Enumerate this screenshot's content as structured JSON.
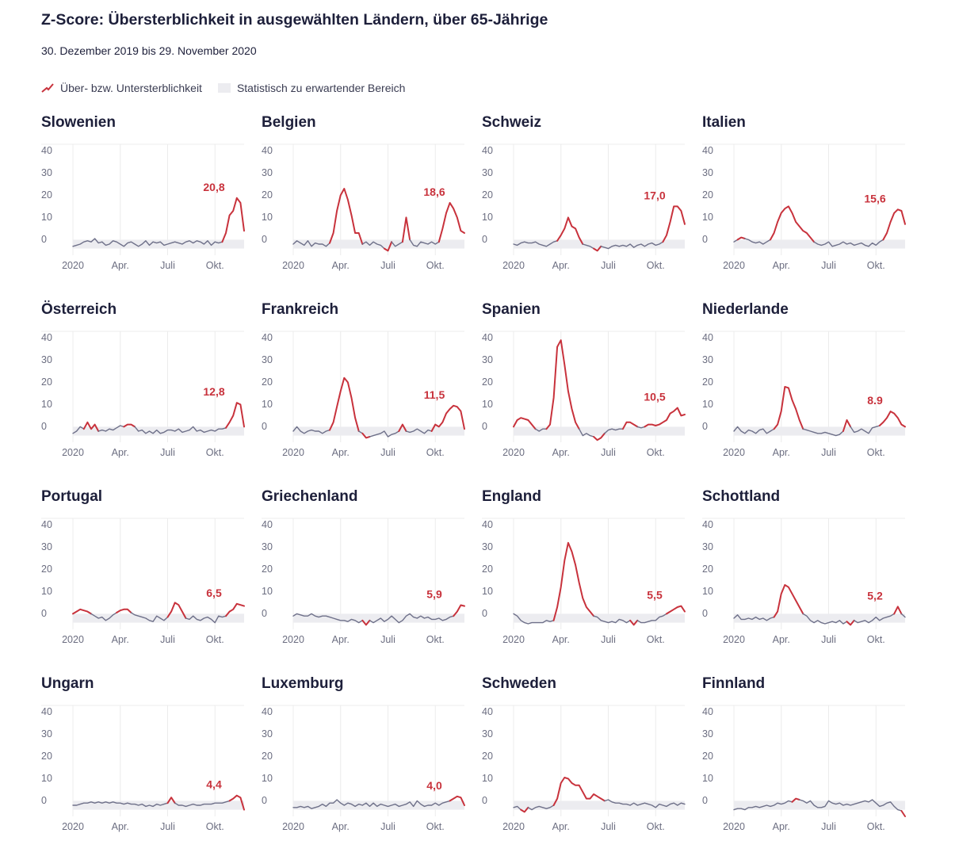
{
  "title": "Z-Score: Übersterblichkeit in ausgewählten Ländern, über 65-Jährige",
  "subtitle": "30. Dezember 2019 bis 29. November 2020",
  "legend": {
    "line_label": "Über- bzw. Untersterblichkeit",
    "band_label": "Statistisch zu erwartender Bereich"
  },
  "colors": {
    "excess": "#c8323c",
    "normal": "#6e7089",
    "band": "#ececf0",
    "grid": "#ececec"
  },
  "chart_data": {
    "type": "line",
    "x": [
      1,
      2,
      3,
      4,
      5,
      6,
      7,
      8,
      9,
      10,
      11,
      12,
      13,
      14,
      15,
      16,
      17,
      18,
      19,
      20,
      21,
      22,
      23,
      24,
      25,
      26,
      27,
      28,
      29,
      30,
      31,
      32,
      33,
      34,
      35,
      36,
      37,
      38,
      39,
      40,
      41,
      42,
      43,
      44,
      45,
      46,
      47,
      48
    ],
    "x_label_weeks": [
      1,
      14,
      27,
      40
    ],
    "x_tick_labels": [
      "2020",
      "Apr.",
      "Juli",
      "Okt."
    ],
    "y_ticks": [
      0,
      10,
      20,
      30,
      40
    ],
    "y_tick_labels": [
      "0",
      "10",
      "20",
      "30",
      "40"
    ],
    "ylim": [
      -5,
      45
    ],
    "expected_band": [
      -2,
      2
    ],
    "panels": [
      {
        "name": "Slowenien",
        "value_label": "20,8",
        "values": [
          -1,
          -0.5,
          0,
          1,
          1.5,
          1,
          2.5,
          0.5,
          1,
          -0.5,
          0,
          1.5,
          1,
          0,
          -1,
          0.5,
          1,
          0,
          -1,
          0,
          1.5,
          -0.5,
          1,
          0.5,
          1,
          -0.5,
          0,
          0.5,
          1,
          0.5,
          0,
          1,
          1.5,
          0.5,
          1.5,
          1,
          0,
          1.5,
          -0.5,
          1,
          0.5,
          1,
          5,
          13,
          15,
          20.8,
          18.6,
          6
        ]
      },
      {
        "name": "Belgien",
        "value_label": "18,6",
        "values": [
          0,
          1.5,
          0.5,
          -0.5,
          1.5,
          -1,
          0.5,
          0,
          0,
          -1,
          0.5,
          5,
          15,
          22,
          25,
          20,
          13,
          5,
          5,
          0,
          1,
          -0.5,
          1,
          0,
          -0.5,
          -2,
          -3,
          1,
          -1,
          0,
          1,
          12,
          2,
          -0.5,
          -1,
          1,
          0.5,
          0,
          1,
          0,
          1,
          7,
          14,
          18.6,
          16,
          12,
          6,
          5
        ]
      },
      {
        "name": "Schweiz",
        "value_label": "17,0",
        "values": [
          0,
          -0.5,
          0.5,
          1,
          0.5,
          0.5,
          1,
          0,
          -0.5,
          -1,
          0,
          1,
          1.5,
          4,
          7,
          12,
          8,
          7,
          3,
          0,
          -0.5,
          -1,
          -2,
          -3,
          -1,
          -1.5,
          -2,
          -1,
          -0.5,
          -1,
          -0.5,
          -1,
          0,
          -1.5,
          -0.5,
          0,
          -1,
          0,
          0.5,
          -0.5,
          0,
          1,
          4,
          10,
          17,
          17,
          15,
          9
        ]
      },
      {
        "name": "Italien",
        "value_label": "15,6",
        "values": [
          1,
          2,
          3,
          2.5,
          2,
          1,
          0.5,
          1,
          0,
          1,
          2,
          5,
          10,
          14,
          16,
          17,
          14,
          10,
          8,
          6,
          5,
          3,
          1,
          0,
          -0.5,
          0,
          1,
          -1,
          -0.5,
          0,
          1,
          0,
          0.5,
          -0.5,
          0,
          0.5,
          -0.5,
          -1,
          0.5,
          -0.5,
          1,
          2,
          5,
          10,
          14,
          15.6,
          15,
          9
        ]
      },
      {
        "name": "Österreich",
        "value_label": "12,8",
        "values": [
          -1,
          0,
          2,
          1,
          4,
          1,
          3,
          0,
          0.5,
          0,
          1,
          0.5,
          1.5,
          2.5,
          2,
          3,
          3,
          2,
          0,
          0.5,
          -1,
          0,
          -1,
          0.5,
          -1,
          -0.5,
          0.5,
          0.5,
          0,
          1,
          -0.5,
          0,
          0.5,
          2,
          0,
          0.5,
          -0.5,
          0,
          0.5,
          0,
          1,
          1,
          1.5,
          4,
          7,
          12.8,
          12,
          2
        ]
      },
      {
        "name": "Frankreich",
        "value_label": "11,5",
        "values": [
          0,
          2,
          0,
          -1,
          0,
          0.5,
          0,
          0,
          -1,
          0,
          0.5,
          4,
          11,
          18,
          24,
          22,
          15,
          6,
          0,
          -1,
          -3,
          -2.5,
          -2,
          -1.5,
          -1,
          0,
          -2.5,
          -1.5,
          -1,
          0,
          3,
          0,
          -0.5,
          0,
          1,
          0,
          -1,
          0.5,
          0,
          3,
          2,
          4,
          8,
          10,
          11.5,
          11,
          9,
          1
        ]
      },
      {
        "name": "Spanien",
        "value_label": "10,5",
        "values": [
          2,
          5,
          6,
          5.5,
          5,
          3,
          1,
          0,
          1,
          1,
          3,
          15,
          38,
          41,
          30,
          18,
          10,
          4,
          1,
          -2,
          -1,
          -2,
          -2.5,
          -4,
          -3,
          -1,
          0.5,
          1,
          0.5,
          1,
          1,
          4,
          4,
          3,
          2,
          1.5,
          2,
          3,
          3,
          2.5,
          3,
          4,
          5,
          8,
          9,
          10.5,
          7,
          7.5
        ]
      },
      {
        "name": "Niederlande",
        "value_label": "8.9",
        "values": [
          0,
          2,
          0,
          -1,
          0.5,
          0,
          -1,
          0.5,
          1,
          -1,
          0,
          1,
          3,
          9,
          20,
          19.5,
          14,
          10,
          5,
          1,
          0.5,
          0,
          -0.5,
          -1,
          -1,
          -0.5,
          -1,
          -1.5,
          -2,
          -1.5,
          0,
          5,
          2,
          -0.5,
          0,
          1,
          0,
          -1,
          1.5,
          2,
          2.5,
          4,
          6,
          8.9,
          8,
          6,
          3,
          2
        ]
      },
      {
        "name": "Portugal",
        "value_label": "6,5",
        "values": [
          2,
          3,
          4,
          3.5,
          3,
          2,
          1,
          0,
          0.5,
          -1,
          0,
          1.5,
          2.5,
          3.5,
          4,
          4,
          2.5,
          1.5,
          1,
          0.5,
          0,
          -1,
          -1.5,
          1,
          0,
          -1,
          0.5,
          3,
          7,
          6,
          3,
          0,
          -0.5,
          1,
          -0.5,
          -1,
          0,
          0.5,
          -0.5,
          -2,
          1,
          0.5,
          1,
          3,
          4,
          6.5,
          6,
          5.5
        ]
      },
      {
        "name": "Griechenland",
        "value_label": "5,9",
        "values": [
          1,
          2,
          1.5,
          1,
          1,
          2,
          1,
          0.5,
          1,
          1,
          0.5,
          0,
          -0.5,
          -1,
          -1,
          -1.5,
          -0.5,
          -1,
          -2,
          -1,
          -3,
          -1,
          -2,
          -1,
          0,
          -1.5,
          -0.5,
          1,
          -0.5,
          -2,
          -1,
          1,
          2,
          0.5,
          0,
          1,
          0,
          0.5,
          -0.5,
          -0.5,
          0,
          -1,
          -0.5,
          0.5,
          1,
          3,
          5.9,
          5.5
        ]
      },
      {
        "name": "England",
        "value_label": "5,5",
        "values": [
          2,
          1,
          -1,
          -2,
          -2.5,
          -2,
          -2,
          -2,
          -2,
          -1,
          -1.5,
          -1,
          5,
          14,
          26,
          34,
          30,
          24,
          16,
          9,
          5,
          3,
          1,
          0.5,
          -1,
          -1.5,
          -2,
          -1.5,
          -2,
          -0.5,
          -1,
          -2,
          -1,
          -3,
          -1,
          -2,
          -2,
          -1.5,
          -1,
          -1,
          0.5,
          1,
          2,
          3,
          4,
          5,
          5.5,
          3
        ]
      },
      {
        "name": "Schottland",
        "value_label": "5,2",
        "values": [
          0,
          1.5,
          -0.5,
          -0.5,
          0,
          -0.5,
          0.5,
          -0.5,
          0,
          -1,
          0,
          0.5,
          3,
          11,
          15,
          14,
          11,
          8,
          5,
          2,
          1,
          -1,
          -2,
          -1,
          -2,
          -2.5,
          -2,
          -1.5,
          -2,
          -1,
          -2.5,
          -1.5,
          -3,
          -1,
          -2,
          -1.5,
          -1,
          -2,
          -1,
          0.5,
          -1,
          0,
          0.5,
          1,
          2,
          5.2,
          2,
          0.5
        ]
      },
      {
        "name": "Ungarn",
        "value_label": "4,4",
        "values": [
          0,
          0,
          0.5,
          1,
          1,
          1.5,
          1,
          1.5,
          1,
          1.5,
          1,
          1.5,
          1,
          1,
          0.5,
          1,
          0.5,
          0.5,
          0,
          0.5,
          -0.5,
          0,
          -0.5,
          0.5,
          0,
          0.5,
          1,
          3.5,
          1,
          0,
          0,
          -0.5,
          0,
          0.5,
          0,
          0,
          0.5,
          0.5,
          0.5,
          1,
          1,
          1,
          1.5,
          2,
          3,
          4.4,
          3.5,
          -2
        ]
      },
      {
        "name": "Luxemburg",
        "value_label": "4,0",
        "values": [
          -1,
          -1,
          -0.5,
          -1,
          -0.5,
          -1.5,
          -1,
          -0.5,
          0.5,
          -0.5,
          1,
          1,
          2.5,
          1,
          0,
          1,
          0.5,
          -0.5,
          0.5,
          0,
          1,
          -0.5,
          1,
          -0.5,
          0.5,
          0,
          -0.5,
          0,
          0.5,
          -0.5,
          0,
          0.5,
          1.5,
          -0.5,
          2,
          0.5,
          -0.5,
          0,
          0,
          1,
          0,
          1,
          1.5,
          2,
          3,
          4,
          3.5,
          0
        ]
      },
      {
        "name": "Schweden",
        "value_label": "",
        "values": [
          -1,
          -0.5,
          -2,
          -3,
          -1,
          -2,
          -1,
          -0.5,
          -1,
          -1.5,
          -1,
          0,
          3,
          10,
          12.5,
          12,
          10,
          9,
          9,
          6,
          3,
          3,
          5,
          4,
          3,
          2,
          2.5,
          1.5,
          1,
          1,
          0.5,
          0.5,
          0,
          1,
          0,
          0.5,
          1,
          0.5,
          0,
          -1,
          0.5,
          0,
          -0.5,
          0.5,
          1,
          0,
          1,
          0.5
        ]
      },
      {
        "name": "Finnland",
        "value_label": "",
        "values": [
          -2,
          -1.5,
          -1.5,
          -2,
          -1,
          -1,
          -0.5,
          -1,
          -0.5,
          0,
          -0.5,
          0,
          1,
          0.5,
          1,
          2,
          1.5,
          3,
          2.5,
          2,
          1,
          2,
          0,
          -1,
          -1,
          -0.5,
          2,
          1,
          0.5,
          1,
          0,
          0.5,
          0,
          0.5,
          1,
          1.5,
          2,
          1.5,
          2.5,
          1,
          -0.5,
          0,
          1,
          1.5,
          -0.5,
          -2,
          -2.5,
          -5
        ]
      }
    ]
  }
}
